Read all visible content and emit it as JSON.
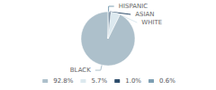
{
  "chart_data": {
    "type": "pie",
    "categories": [
      "BLACK",
      "WHITE",
      "ASIAN",
      "HISPANIC"
    ],
    "values": [
      92.8,
      5.7,
      1.0,
      0.6
    ],
    "value_labels": [
      "92.8%",
      "5.7%",
      "1.0%",
      "0.6%"
    ],
    "colors": [
      "#adc0cb",
      "#dce9ef",
      "#2e4d6b",
      "#7d9fb3"
    ],
    "legend": "bottom"
  }
}
